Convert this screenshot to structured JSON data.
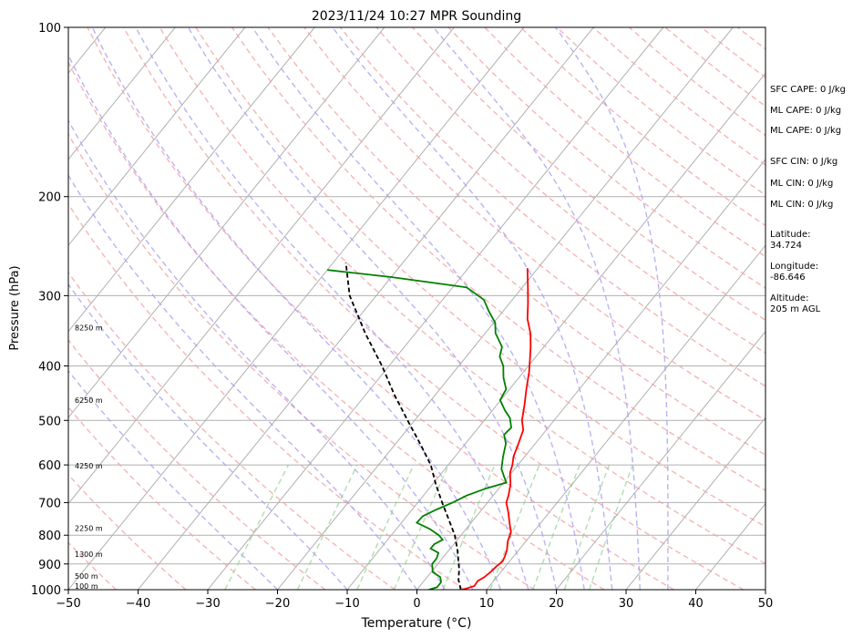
{
  "chart_data": {
    "type": "line",
    "title": "2023/11/24 10:27 MPR Sounding",
    "xlabel": "Temperature (°C)",
    "ylabel": "Pressure (hPa)",
    "xlim": [
      -50,
      50
    ],
    "ylim": [
      1000,
      100
    ],
    "y_scale": "log",
    "grid": true,
    "x_ticks": [
      "−50",
      "−40",
      "−30",
      "−20",
      "−10",
      "0",
      "10",
      "20",
      "30",
      "40",
      "50"
    ],
    "y_ticks": [
      "100",
      "200",
      "300",
      "400",
      "500",
      "600",
      "700",
      "800",
      "900",
      "1000"
    ],
    "height_labels": [
      {
        "text": "100 m",
        "pressure": 985
      },
      {
        "text": "500 m",
        "pressure": 945
      },
      {
        "text": "1300 m",
        "pressure": 865
      },
      {
        "text": "2250 m",
        "pressure": 778
      },
      {
        "text": "4250 m",
        "pressure": 602
      },
      {
        "text": "6250 m",
        "pressure": 460
      },
      {
        "text": "8250 m",
        "pressure": 342
      }
    ],
    "series": [
      {
        "id": "temperature",
        "color": "#ff0000",
        "points": [
          [
            1000,
            6.5
          ],
          [
            985,
            7.8
          ],
          [
            965,
            7.7
          ],
          [
            950,
            8.2
          ],
          [
            930,
            8.5
          ],
          [
            910,
            8.7
          ],
          [
            890,
            9.0
          ],
          [
            870,
            8.7
          ],
          [
            850,
            8.3
          ],
          [
            820,
            7.4
          ],
          [
            790,
            6.8
          ],
          [
            760,
            5.5
          ],
          [
            730,
            4.2
          ],
          [
            700,
            2.7
          ],
          [
            680,
            2.2
          ],
          [
            650,
            1.2
          ],
          [
            620,
            -0.2
          ],
          [
            600,
            -0.8
          ],
          [
            580,
            -1.6
          ],
          [
            550,
            -2.4
          ],
          [
            520,
            -3.3
          ],
          [
            500,
            -4.6
          ],
          [
            470,
            -6.0
          ],
          [
            440,
            -7.6
          ],
          [
            410,
            -9.2
          ],
          [
            390,
            -10.5
          ],
          [
            370,
            -11.9
          ],
          [
            350,
            -13.5
          ],
          [
            330,
            -15.6
          ],
          [
            310,
            -17.3
          ],
          [
            290,
            -19.2
          ],
          [
            268,
            -21.5
          ]
        ]
      },
      {
        "id": "dewpoint",
        "color": "#008000",
        "points": [
          [
            1000,
            1.7
          ],
          [
            990,
            2.6
          ],
          [
            970,
            2.6
          ],
          [
            950,
            1.9
          ],
          [
            930,
            0.2
          ],
          [
            900,
            -0.8
          ],
          [
            880,
            -0.8
          ],
          [
            860,
            -1.2
          ],
          [
            845,
            -2.8
          ],
          [
            830,
            -2.8
          ],
          [
            815,
            -2.1
          ],
          [
            800,
            -3.2
          ],
          [
            780,
            -5.2
          ],
          [
            760,
            -7.8
          ],
          [
            740,
            -7.7
          ],
          [
            720,
            -6.5
          ],
          [
            700,
            -5.0
          ],
          [
            680,
            -3.8
          ],
          [
            660,
            -1.8
          ],
          [
            645,
            0.4
          ],
          [
            630,
            -0.6
          ],
          [
            610,
            -1.9
          ],
          [
            580,
            -3.1
          ],
          [
            550,
            -4.2
          ],
          [
            530,
            -5.5
          ],
          [
            515,
            -5.3
          ],
          [
            495,
            -6.6
          ],
          [
            480,
            -8.2
          ],
          [
            460,
            -10.1
          ],
          [
            440,
            -10.5
          ],
          [
            420,
            -12.2
          ],
          [
            400,
            -13.6
          ],
          [
            385,
            -15.2
          ],
          [
            370,
            -16.0
          ],
          [
            350,
            -18.5
          ],
          [
            335,
            -19.8
          ],
          [
            320,
            -22.0
          ],
          [
            305,
            -24.1
          ],
          [
            290,
            -28.0
          ],
          [
            278,
            -40.0
          ],
          [
            270,
            -50.0
          ]
        ]
      },
      {
        "id": "parcel",
        "color": "#000000",
        "points": [
          [
            1000,
            6.3
          ],
          [
            960,
            4.8
          ],
          [
            920,
            3.7
          ],
          [
            880,
            2.3
          ],
          [
            850,
            1.2
          ],
          [
            800,
            -0.9
          ],
          [
            750,
            -3.6
          ],
          [
            700,
            -6.5
          ],
          [
            650,
            -9.5
          ],
          [
            600,
            -12.5
          ],
          [
            550,
            -16.5
          ],
          [
            500,
            -21.0
          ],
          [
            450,
            -25.9
          ],
          [
            400,
            -31.0
          ],
          [
            350,
            -37.2
          ],
          [
            300,
            -43.8
          ],
          [
            262,
            -48.2
          ]
        ]
      }
    ]
  },
  "info": {
    "sfc_cape": "SFC CAPE: 0 J/kg",
    "ml_cape_1": "ML CAPE: 0 J/kg",
    "ml_cape_2": "ML CAPE: 0 J/kg",
    "sfc_cin": "SFC CIN: 0 J/kg",
    "ml_cin_1": "ML CIN: 0 J/kg",
    "ml_cin_2": "ML CIN: 0 J/kg",
    "latitude": "Latitude:\n34.724",
    "longitude": "Longitude:\n-86.646",
    "altitude": "Altitude:\n205 m AGL"
  }
}
